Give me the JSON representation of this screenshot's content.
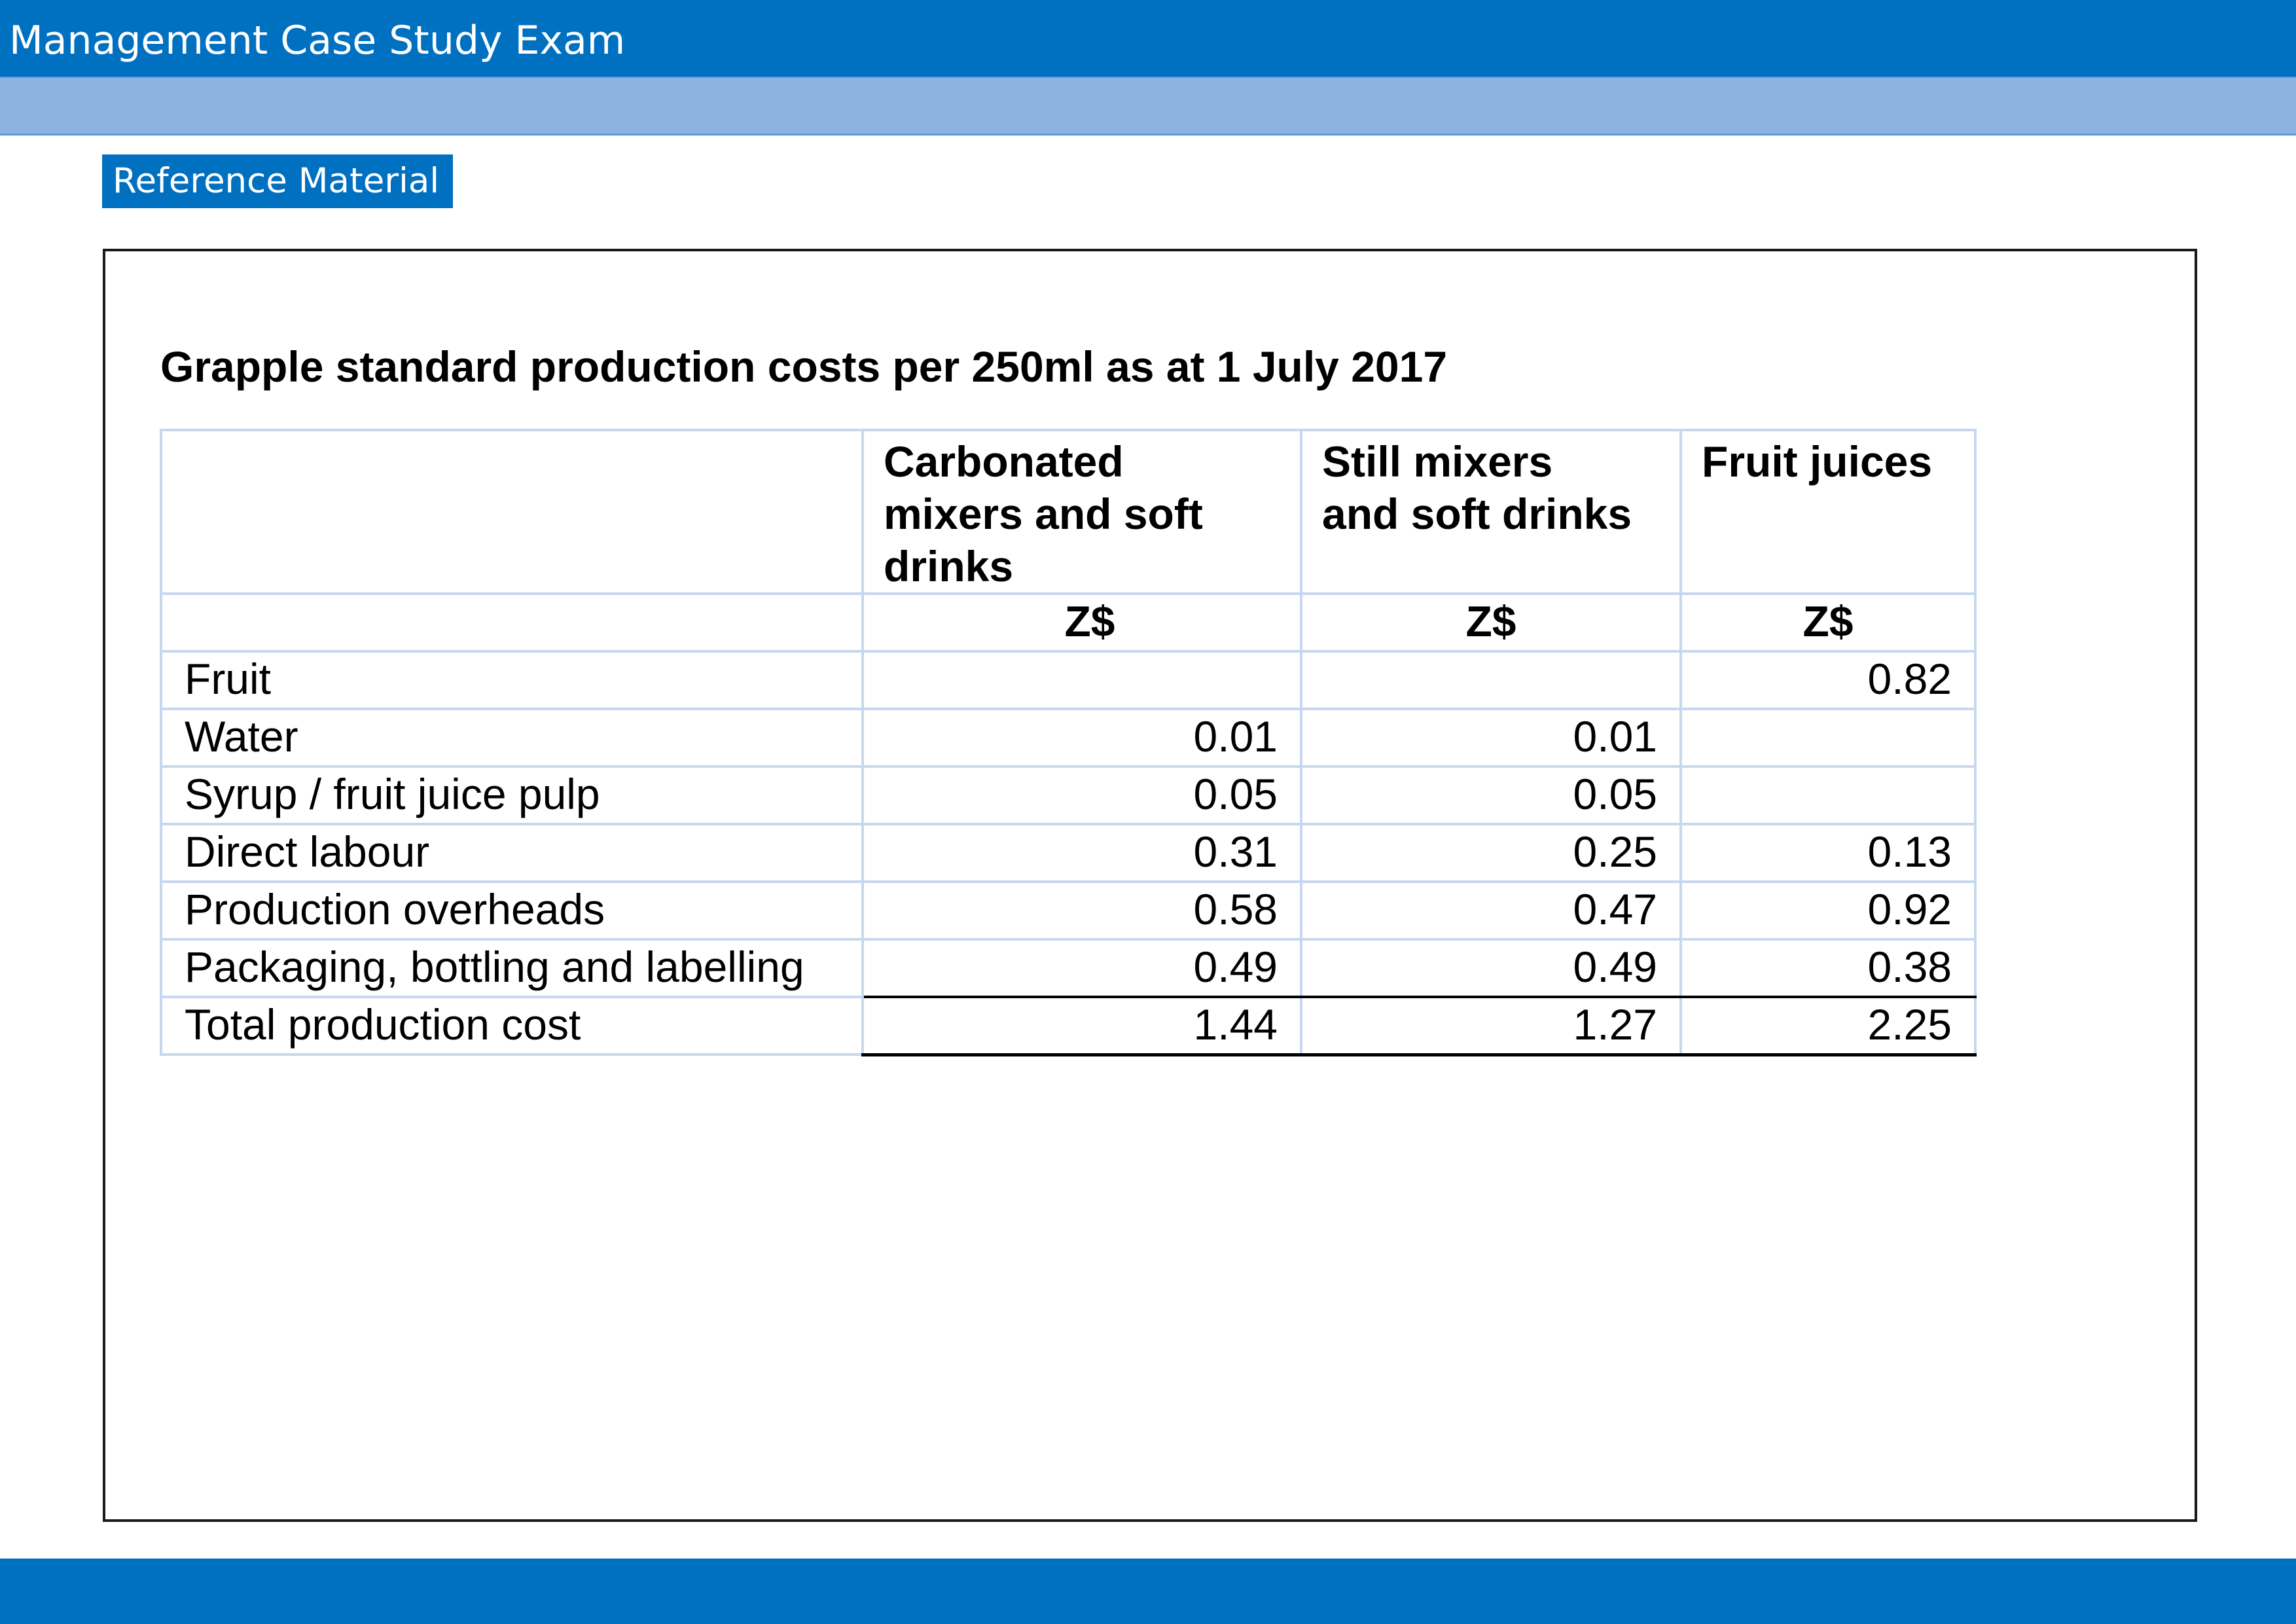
{
  "header": {
    "title": "Management Case Study Exam"
  },
  "tab": {
    "label": "Reference Material"
  },
  "document": {
    "title": "Grapple standard production costs per 250ml as at 1 July 2017",
    "columns": [
      "Carbonated mixers and soft drinks",
      "Still mixers and soft drinks",
      "Fruit juices"
    ],
    "column_lines": [
      [
        "Carbonated",
        "mixers and soft",
        "drinks"
      ],
      [
        "Still mixers",
        "and soft drinks"
      ],
      [
        "Fruit juices"
      ]
    ],
    "units": [
      "Z$",
      "Z$",
      "Z$"
    ],
    "rows": [
      {
        "label": "Fruit",
        "values": [
          "",
          "",
          "0.82"
        ]
      },
      {
        "label": "Water",
        "values": [
          "0.01",
          "0.01",
          ""
        ]
      },
      {
        "label": "Syrup / fruit juice pulp",
        "values": [
          "0.05",
          "0.05",
          ""
        ]
      },
      {
        "label": "Direct labour",
        "values": [
          "0.31",
          "0.25",
          "0.13"
        ]
      },
      {
        "label": "Production overheads",
        "values": [
          "0.58",
          "0.47",
          "0.92"
        ]
      },
      {
        "label": "Packaging, bottling and labelling",
        "values": [
          "0.49",
          "0.49",
          "0.38"
        ]
      }
    ],
    "total": {
      "label": "Total production cost",
      "values": [
        "1.44",
        "1.27",
        "2.25"
      ]
    }
  }
}
